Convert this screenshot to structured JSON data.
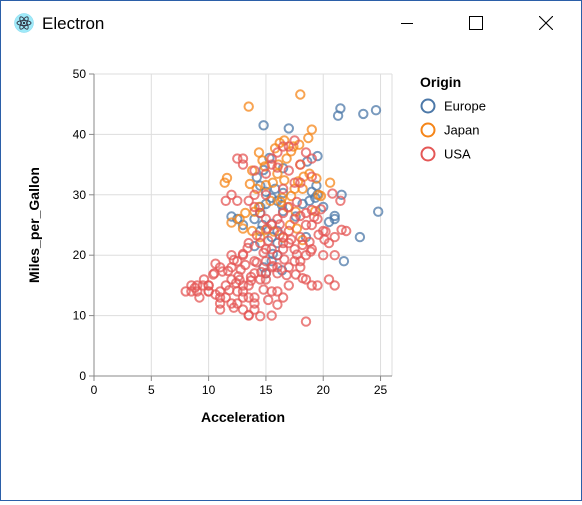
{
  "window": {
    "title": "Electron",
    "controls": {
      "minimize": "minimize",
      "maximize": "maximize",
      "close": "close"
    }
  },
  "chart_data": {
    "type": "scatter",
    "title": "",
    "xlabel": "Acceleration",
    "ylabel": "Miles_per_Gallon",
    "xlim": [
      0,
      26
    ],
    "ylim": [
      0,
      50
    ],
    "x_ticks": [
      0,
      5,
      10,
      15,
      20,
      25
    ],
    "y_ticks": [
      0,
      10,
      20,
      30,
      40,
      50
    ],
    "grid": true,
    "legend": {
      "title": "Origin",
      "position": "right"
    },
    "series": [
      {
        "name": "Europe",
        "color": "#4c78a8",
        "points": [
          [
            14.8,
            41.5
          ],
          [
            17,
            41
          ],
          [
            21.5,
            44.3
          ],
          [
            21.3,
            43.1
          ],
          [
            23.5,
            43.4
          ],
          [
            24.6,
            44
          ],
          [
            24.8,
            27.2
          ],
          [
            21.8,
            19
          ],
          [
            23.2,
            23
          ],
          [
            19.5,
            36.4
          ],
          [
            18.6,
            35.5
          ],
          [
            16.5,
            34.4
          ],
          [
            14.8,
            34.1
          ],
          [
            15.3,
            36.1
          ],
          [
            14.2,
            32.9
          ],
          [
            16.5,
            30.3
          ],
          [
            15,
            30.5
          ],
          [
            14.5,
            31.5
          ],
          [
            15.8,
            31
          ],
          [
            18.2,
            28.5
          ],
          [
            19.3,
            29.5
          ],
          [
            20,
            28
          ],
          [
            21,
            26
          ],
          [
            21,
            26.5
          ],
          [
            20.5,
            25.5
          ],
          [
            19.5,
            30
          ],
          [
            21.6,
            30
          ],
          [
            16,
            29
          ],
          [
            15,
            28.5
          ],
          [
            14.5,
            27
          ],
          [
            14,
            26
          ],
          [
            13,
            25
          ],
          [
            12.5,
            26
          ],
          [
            12,
            26.4
          ],
          [
            14.5,
            24
          ],
          [
            14.7,
            25
          ],
          [
            15.5,
            25.2
          ],
          [
            16,
            24
          ],
          [
            15.5,
            23
          ],
          [
            16,
            22
          ],
          [
            14,
            21.5
          ],
          [
            15.6,
            20.2
          ],
          [
            15.5,
            19
          ],
          [
            16.4,
            17.5
          ],
          [
            15,
            17
          ],
          [
            14.8,
            18
          ],
          [
            16,
            20
          ],
          [
            14.5,
            28
          ],
          [
            15.5,
            29.5
          ],
          [
            16.4,
            28.3
          ],
          [
            16.5,
            27.3
          ],
          [
            17.6,
            26.4
          ],
          [
            18.5,
            23
          ],
          [
            19.4,
            31.5
          ],
          [
            19,
            30.5
          ],
          [
            18.8,
            29
          ]
        ]
      },
      {
        "name": "Japan",
        "color": "#f58518",
        "points": [
          [
            13.5,
            44.6
          ],
          [
            18,
            46.6
          ],
          [
            19,
            40.8
          ],
          [
            18.7,
            39.4
          ],
          [
            16.2,
            38.6
          ],
          [
            17.4,
            38
          ],
          [
            17.2,
            37.2
          ],
          [
            16.8,
            36
          ],
          [
            16.1,
            35
          ],
          [
            14.7,
            35.7
          ],
          [
            14.9,
            34.7
          ],
          [
            13.8,
            34
          ],
          [
            11.6,
            32.8
          ],
          [
            11.4,
            32
          ],
          [
            13.6,
            31.8
          ],
          [
            14.2,
            31
          ],
          [
            15,
            31.6
          ],
          [
            15.6,
            32
          ],
          [
            16,
            33.5
          ],
          [
            16.6,
            32.4
          ],
          [
            17.5,
            31
          ],
          [
            17.8,
            32.2
          ],
          [
            18.3,
            33
          ],
          [
            18.8,
            33.5
          ],
          [
            19.4,
            32.7
          ],
          [
            20.6,
            32
          ],
          [
            19.6,
            30
          ],
          [
            18.2,
            31
          ],
          [
            17.2,
            29.8
          ],
          [
            16.4,
            29.5
          ],
          [
            15.4,
            29
          ],
          [
            14.4,
            28
          ],
          [
            14,
            27.2
          ],
          [
            13.2,
            27
          ],
          [
            12.7,
            26
          ],
          [
            12,
            25.4
          ],
          [
            13,
            24.4
          ],
          [
            13.8,
            24
          ],
          [
            14.5,
            23
          ],
          [
            15,
            24.2
          ],
          [
            15.7,
            23.9
          ],
          [
            16.5,
            22.9
          ],
          [
            17.1,
            25
          ],
          [
            17.7,
            24.4
          ],
          [
            18.2,
            22.5
          ],
          [
            17.6,
            27.2
          ],
          [
            16.9,
            27.9
          ],
          [
            16.3,
            28.8
          ],
          [
            18,
            35
          ],
          [
            17.9,
            38.3
          ],
          [
            16.6,
            39
          ],
          [
            14.4,
            37
          ],
          [
            15.8,
            37.7
          ],
          [
            19.3,
            27.3
          ],
          [
            19.8,
            29.8
          ]
        ]
      },
      {
        "name": "USA",
        "color": "#e45756",
        "points": [
          [
            12,
            18
          ],
          [
            11.5,
            15
          ],
          [
            11,
            18
          ],
          [
            12,
            16
          ],
          [
            10.5,
            17
          ],
          [
            10,
            15
          ],
          [
            9,
            14
          ],
          [
            8.5,
            14
          ],
          [
            10,
            14
          ],
          [
            8.5,
            15
          ],
          [
            10,
            15
          ],
          [
            8,
            14
          ],
          [
            9.5,
            15
          ],
          [
            10,
            14
          ],
          [
            9,
            15
          ],
          [
            13,
            14
          ],
          [
            12.5,
            14
          ],
          [
            13,
            13
          ],
          [
            14,
            13
          ],
          [
            15.5,
            14
          ],
          [
            13.5,
            15
          ],
          [
            13,
            15
          ],
          [
            11,
            12
          ],
          [
            11,
            13
          ],
          [
            11.5,
            13
          ],
          [
            11,
            14
          ],
          [
            12,
            12
          ],
          [
            13.5,
            13
          ],
          [
            13,
            11
          ],
          [
            11,
            11
          ],
          [
            12.5,
            12
          ],
          [
            14,
            12
          ],
          [
            13.5,
            10
          ],
          [
            14,
            11
          ],
          [
            15.5,
            10
          ],
          [
            16.5,
            13
          ],
          [
            17,
            15
          ],
          [
            16,
            14
          ],
          [
            19,
            15
          ],
          [
            18.5,
            16
          ],
          [
            19.5,
            15
          ],
          [
            21,
            15
          ],
          [
            20.5,
            16
          ],
          [
            18,
            18
          ],
          [
            17.5,
            19
          ],
          [
            16,
            18
          ],
          [
            15.5,
            18
          ],
          [
            15,
            19
          ],
          [
            14,
            17
          ],
          [
            14.5,
            16
          ],
          [
            15,
            17
          ],
          [
            15,
            21
          ],
          [
            16,
            20
          ],
          [
            16.5,
            21
          ],
          [
            17,
            22
          ],
          [
            18,
            23
          ],
          [
            17,
            24
          ],
          [
            16.5,
            23
          ],
          [
            18.5,
            25
          ],
          [
            19,
            25
          ],
          [
            19.5,
            26
          ],
          [
            20,
            24
          ],
          [
            21,
            23
          ],
          [
            20.5,
            22
          ],
          [
            22,
            24
          ],
          [
            21,
            20
          ],
          [
            20,
            20
          ],
          [
            19,
            21
          ],
          [
            18.5,
            20
          ],
          [
            18,
            19
          ],
          [
            17.5,
            21
          ],
          [
            17,
            18
          ],
          [
            16,
            17
          ],
          [
            15,
            16
          ],
          [
            14,
            19
          ],
          [
            13,
            20
          ],
          [
            12.5,
            19
          ],
          [
            12,
            20
          ],
          [
            13.5,
            22
          ],
          [
            14.5,
            22
          ],
          [
            15.5,
            21
          ],
          [
            16.5,
            22
          ],
          [
            17.5,
            26
          ],
          [
            18,
            26.5
          ],
          [
            18.5,
            27
          ],
          [
            19,
            27.5
          ],
          [
            17,
            28
          ],
          [
            16.5,
            27
          ],
          [
            16,
            26
          ],
          [
            15.5,
            25
          ],
          [
            15,
            26
          ],
          [
            14.5,
            27
          ],
          [
            14,
            28
          ],
          [
            13.5,
            29
          ],
          [
            12.5,
            29
          ],
          [
            11.5,
            29
          ],
          [
            12,
            30
          ],
          [
            14,
            30
          ],
          [
            15,
            30
          ],
          [
            16.5,
            31
          ],
          [
            17.5,
            32
          ],
          [
            18,
            32
          ],
          [
            19,
            33
          ],
          [
            15,
            33.5
          ],
          [
            14,
            34
          ],
          [
            13,
            35
          ],
          [
            13,
            36
          ],
          [
            12.5,
            36
          ],
          [
            15.5,
            36
          ],
          [
            16,
            37
          ],
          [
            16.5,
            38
          ],
          [
            17,
            38
          ],
          [
            17.5,
            39
          ],
          [
            18.5,
            37
          ],
          [
            19,
            36
          ],
          [
            18,
            35
          ],
          [
            17,
            34
          ],
          [
            16,
            34.5
          ],
          [
            15.5,
            35
          ],
          [
            13,
            20.2
          ],
          [
            12.8,
            17.6
          ],
          [
            12.6,
            16.5
          ],
          [
            12.4,
            15.4
          ],
          [
            11.8,
            14.2
          ],
          [
            10.6,
            13.5
          ],
          [
            9.2,
            13
          ],
          [
            8.8,
            14.6
          ],
          [
            9.6,
            16
          ],
          [
            10.4,
            16.8
          ],
          [
            11.2,
            17.3
          ],
          [
            12.2,
            19.2
          ],
          [
            13.2,
            18.4
          ],
          [
            14.2,
            18.8
          ],
          [
            14.8,
            20.4
          ],
          [
            15.2,
            22.4
          ],
          [
            16.2,
            23.4
          ],
          [
            17.2,
            22.6
          ],
          [
            18.2,
            21.7
          ],
          [
            18.8,
            22.2
          ],
          [
            19.6,
            23.4
          ],
          [
            20.2,
            23.9
          ],
          [
            21.6,
            24.2
          ],
          [
            17.6,
            16.8
          ],
          [
            18.2,
            16.2
          ],
          [
            16.8,
            16.7
          ],
          [
            18.5,
            9
          ],
          [
            14.5,
            9.9
          ],
          [
            13.5,
            10.1
          ],
          [
            12.2,
            11.3
          ],
          [
            15.2,
            12.6
          ],
          [
            16,
            11.8
          ],
          [
            14.8,
            14.3
          ],
          [
            13.7,
            15.8
          ],
          [
            12.7,
            15.9
          ],
          [
            11.7,
            17.4
          ],
          [
            10.6,
            18.6
          ],
          [
            13.4,
            21.2
          ],
          [
            14.2,
            23.3
          ],
          [
            15.1,
            24.4
          ],
          [
            16.2,
            25.1
          ],
          [
            17.7,
            28.8
          ],
          [
            19.2,
            26.3
          ],
          [
            20.1,
            22.6
          ],
          [
            21.5,
            29
          ],
          [
            20.8,
            30.2
          ],
          [
            19.8,
            27.6
          ],
          [
            18.9,
            20.6
          ],
          [
            17.7,
            20.1
          ],
          [
            16.6,
            19.3
          ],
          [
            15.6,
            18.2
          ],
          [
            14.6,
            17.2
          ],
          [
            13.7,
            16.4
          ]
        ]
      }
    ]
  }
}
